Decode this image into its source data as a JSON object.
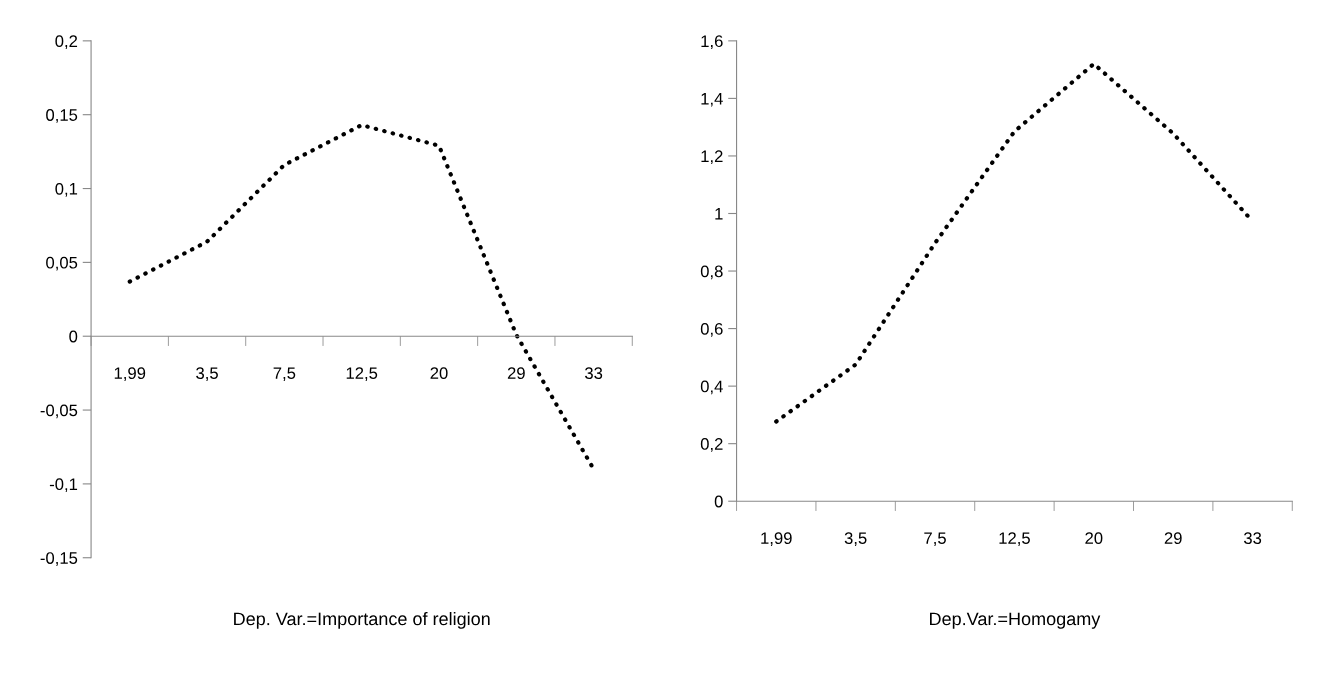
{
  "chart_data": [
    {
      "type": "line",
      "categories": [
        "1,99",
        "3,5",
        "7,5",
        "12,5",
        "20",
        "29",
        "33"
      ],
      "values": [
        0.037,
        0.064,
        0.116,
        0.143,
        0.129,
        0.001,
        -0.09
      ],
      "color": "#000000",
      "line_style": "dotted",
      "xlabel": "Dep. Var.=Importance of religion",
      "ylim": [
        -0.15,
        0.2
      ],
      "yticks": [
        {
          "value": -0.15,
          "label": "-0,15"
        },
        {
          "value": -0.1,
          "label": "-0,1"
        },
        {
          "value": -0.05,
          "label": "-0,05"
        },
        0,
        {
          "value": 0.05,
          "label": "0,05"
        },
        {
          "value": 0.1,
          "label": "0,1"
        },
        {
          "value": 0.15,
          "label": "0,15"
        },
        {
          "value": 0.2,
          "label": "0,2"
        }
      ]
    },
    {
      "type": "line",
      "categories": [
        "1,99",
        "3,5",
        "7,5",
        "12,5",
        "20",
        "29",
        "33"
      ],
      "values": [
        0.277,
        0.475,
        0.897,
        1.285,
        1.52,
        1.278,
        0.973
      ],
      "color": "#000000",
      "line_style": "dotted",
      "xlabel": "Dep.Var.=Homogamy",
      "ylim": [
        0,
        1.6
      ],
      "yticks": [
        0,
        {
          "value": 0.2,
          "label": "0,2"
        },
        {
          "value": 0.4,
          "label": "0,4"
        },
        {
          "value": 0.6,
          "label": "0,6"
        },
        {
          "value": 0.8,
          "label": "0,8"
        },
        1,
        {
          "value": 1.2,
          "label": "1,2"
        },
        {
          "value": 1.4,
          "label": "1,4"
        },
        {
          "value": 1.6,
          "label": "1,6"
        }
      ]
    }
  ]
}
